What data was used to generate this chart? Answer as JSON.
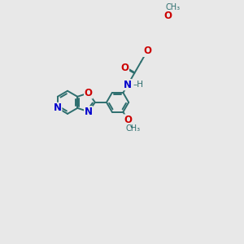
{
  "bg_color": "#e8e8e8",
  "bond_color": "#2d6e6e",
  "N_color": "#0000cc",
  "O_color": "#cc0000",
  "bond_lw": 1.4,
  "font_size": 8.5,
  "xlim": [
    0,
    10
  ],
  "ylim": [
    0,
    10
  ]
}
